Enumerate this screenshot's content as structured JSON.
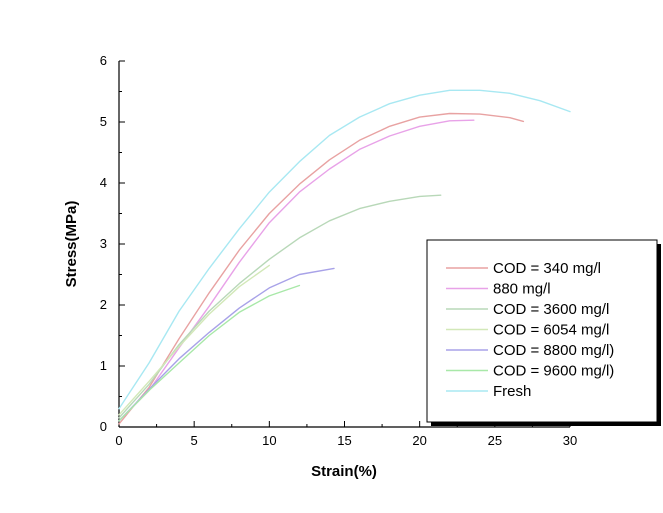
{
  "chart_data": {
    "type": "line",
    "xlabel": "Strain(%)",
    "ylabel": "Stress(MPa)",
    "xlim": [
      0,
      30
    ],
    "ylim": [
      0,
      6
    ],
    "x_ticks": [
      "0",
      "5",
      "10",
      "15",
      "20",
      "25",
      "30"
    ],
    "y_ticks": [
      "0",
      "1",
      "2",
      "3",
      "4",
      "5",
      "6"
    ],
    "grid": false,
    "legend_position": "right",
    "series": [
      {
        "name": "COD = 340  mg/l",
        "color": "#e8a2a2",
        "x": [
          0,
          2,
          4,
          6,
          8,
          10,
          12,
          14,
          16,
          18,
          20,
          22,
          24,
          26,
          26.9
        ],
        "y": [
          0.05,
          0.65,
          1.45,
          2.2,
          2.9,
          3.5,
          3.98,
          4.38,
          4.7,
          4.93,
          5.08,
          5.14,
          5.13,
          5.07,
          5.01
        ]
      },
      {
        "name": "880 mg/l",
        "color": "#e8a2e8",
        "x": [
          0,
          2,
          4,
          6,
          8,
          10,
          12,
          14,
          16,
          18,
          20,
          22,
          23.6
        ],
        "y": [
          0.1,
          0.6,
          1.3,
          1.98,
          2.7,
          3.35,
          3.85,
          4.23,
          4.55,
          4.77,
          4.93,
          5.02,
          5.03
        ]
      },
      {
        "name": "COD = 3600  mg/l",
        "color": "#b8d8b8",
        "x": [
          0,
          2,
          4,
          6,
          8,
          10,
          12,
          14,
          16,
          18,
          20,
          21.4
        ],
        "y": [
          0.15,
          0.7,
          1.35,
          1.9,
          2.35,
          2.75,
          3.1,
          3.38,
          3.58,
          3.7,
          3.78,
          3.8
        ]
      },
      {
        "name": "COD = 6054  mg/l",
        "color": "#d2e8b8",
        "x": [
          0,
          2,
          4,
          6,
          8,
          10
        ],
        "y": [
          0.2,
          0.75,
          1.32,
          1.85,
          2.3,
          2.65
        ]
      },
      {
        "name": "COD = 8800  mg/l)",
        "color": "#a8a2e8",
        "x": [
          0,
          2,
          4,
          6,
          8,
          10,
          12,
          14.3
        ],
        "y": [
          0.1,
          0.62,
          1.12,
          1.55,
          1.95,
          2.28,
          2.5,
          2.6
        ]
      },
      {
        "name": "COD = 9600  mg/l)",
        "color": "#a8e8a8",
        "x": [
          0,
          2,
          4,
          6,
          8,
          10,
          12
        ],
        "y": [
          0.1,
          0.6,
          1.05,
          1.5,
          1.88,
          2.15,
          2.32
        ]
      },
      {
        "name": "Fresh",
        "color": "#a8e8f2",
        "x": [
          0,
          2,
          4,
          6,
          8,
          10,
          12,
          14,
          16,
          18,
          20,
          22,
          24,
          26,
          28,
          30
        ],
        "y": [
          0.3,
          1.05,
          1.9,
          2.6,
          3.25,
          3.85,
          4.35,
          4.78,
          5.08,
          5.3,
          5.44,
          5.52,
          5.52,
          5.47,
          5.35,
          5.17
        ]
      }
    ]
  }
}
